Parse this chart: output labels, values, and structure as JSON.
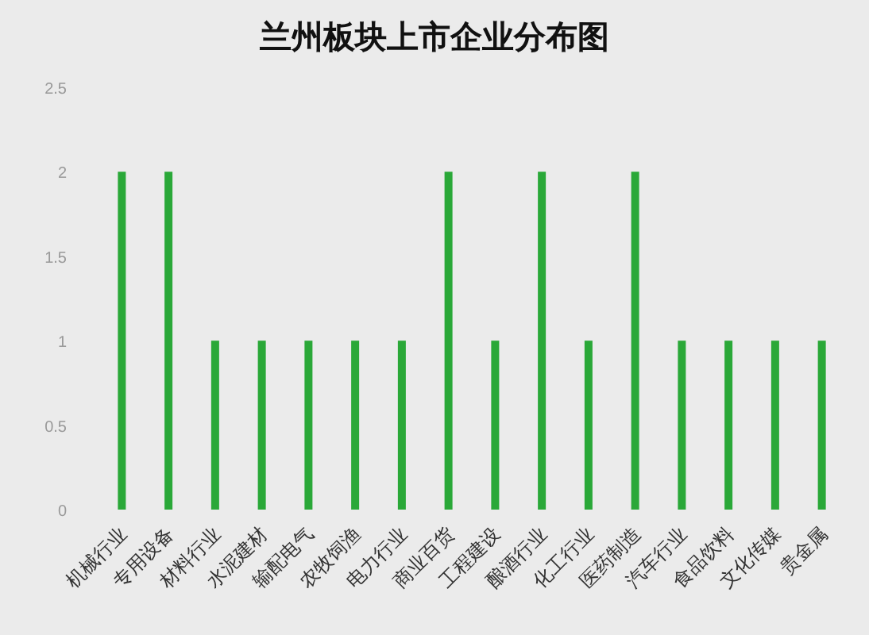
{
  "chart_data": {
    "type": "bar",
    "title": "兰州板块上市企业分布图",
    "categories": [
      "机械行业",
      "专用设备",
      "材料行业",
      "水泥建材",
      "输配电气",
      "农牧饲渔",
      "电力行业",
      "商业百货",
      "工程建设",
      "酿酒行业",
      "化工行业",
      "医药制造",
      "汽车行业",
      "食品饮料",
      "文化传媒",
      "贵金属"
    ],
    "values": [
      2,
      2,
      1,
      1,
      1,
      1,
      1,
      2,
      1,
      2,
      1,
      2,
      1,
      1,
      1,
      1
    ],
    "color": "#2aa838",
    "ylim": [
      0,
      2.5
    ],
    "yticks": [
      0,
      0.5,
      1,
      1.5,
      2,
      2.5
    ]
  }
}
